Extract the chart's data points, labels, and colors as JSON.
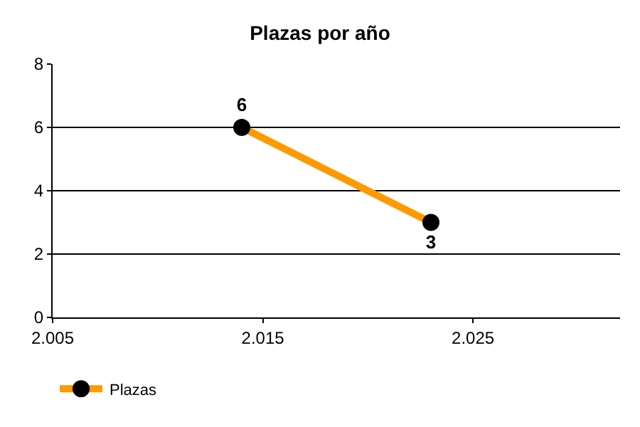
{
  "chart_data": {
    "type": "line",
    "title": "Plazas por año",
    "x": [
      2014,
      2023
    ],
    "series": [
      {
        "name": "Plazas",
        "color": "#ff9900",
        "values": [
          6,
          3
        ]
      }
    ],
    "xlim": [
      2005,
      2032
    ],
    "xticks": [
      {
        "value": 2005,
        "label": "2.005"
      },
      {
        "value": 2015,
        "label": "2.015"
      },
      {
        "value": 2025,
        "label": "2.025"
      }
    ],
    "ylim": [
      0,
      8
    ],
    "yticks": [
      0,
      2,
      4,
      6,
      8
    ],
    "grid": "y",
    "legend": "bottom left",
    "marker": "circle",
    "line_style": "solid",
    "data_labels": true
  }
}
